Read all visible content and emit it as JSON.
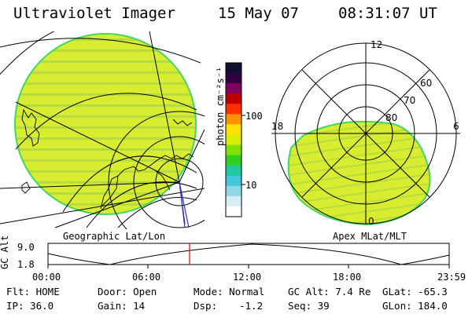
{
  "header": {
    "title": "Ultraviolet Imager",
    "date": "15 May 07",
    "time": "08:31:07 UT"
  },
  "colorbar": {
    "unit_label": "photon cm⁻²s⁻¹",
    "tick_100": "100",
    "tick_10": "10",
    "colors": [
      "#101030",
      "#300040",
      "#800060",
      "#c00000",
      "#ff3000",
      "#ff9000",
      "#ffe000",
      "#d8f000",
      "#80e000",
      "#30d020",
      "#20c8a0",
      "#40c8d8",
      "#90d8e8",
      "#d8eef6",
      "#ffffff"
    ]
  },
  "left_panel": {
    "caption": "Geographic Lat/Lon",
    "fill_color": "#d8ec30",
    "edge_color": "#40d860"
  },
  "right_panel": {
    "caption": "Apex MLat/MLT",
    "labels": {
      "mlt_12": "12",
      "mlt_18": "18",
      "mlt_6": "6",
      "mlt_0": "0",
      "lat_60": "60",
      "lat_70": "70",
      "lat_80": "80"
    },
    "fill_color": "#d8ec30"
  },
  "altitude_plot": {
    "ylabel": "GC Alt",
    "y_ticks": [
      "9.0",
      "1.8"
    ],
    "x_ticks": [
      "00:00",
      "06:00",
      "12:00",
      "18:00",
      "23:59"
    ],
    "marker_color": "#e00000"
  },
  "info": {
    "flt": "Flt: HOME",
    "ip": "IP: 36.0",
    "door": "Door: Open",
    "gain": "Gain: 14",
    "mode": "Mode: Normal",
    "dsp_label": "Dsp:",
    "dsp_value": "-1.2",
    "gc_alt": "GC Alt: 7.4 Re",
    "seq": "Seq: 39",
    "glat": "GLat: -65.3",
    "glon": "GLon: 184.0"
  }
}
